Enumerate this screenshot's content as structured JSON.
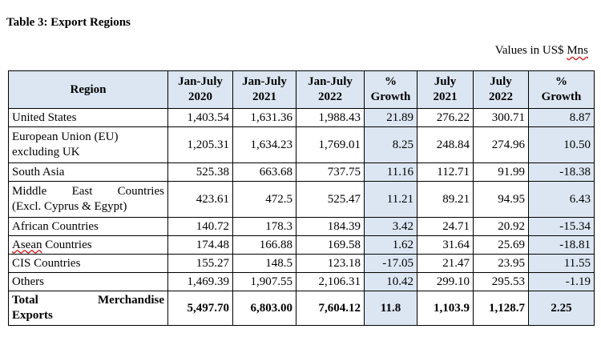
{
  "title": "Table 3: Export Regions",
  "units": {
    "prefix": "Values in US$ ",
    "suffix": "Mns"
  },
  "columns": [
    "Region",
    "Jan-July 2020",
    "Jan-July 2021",
    "Jan-July 2022",
    "% Growth",
    "July 2021",
    "July 2022",
    "% Growth"
  ],
  "header": {
    "region": "Region",
    "c1": [
      "Jan-July",
      "2020"
    ],
    "c2": [
      "Jan-July",
      "2021"
    ],
    "c3": [
      "Jan-July",
      "2022"
    ],
    "c4": [
      "%",
      "Growth"
    ],
    "c5": [
      "July",
      "2021"
    ],
    "c6": [
      "July",
      "2022"
    ],
    "c7": [
      "%",
      "Growth"
    ]
  },
  "rows": [
    {
      "region": "United States",
      "values": [
        "1,403.54",
        "1,631.36",
        "1,988.43",
        "21.89",
        "276.22",
        "300.71",
        "8.87"
      ]
    },
    {
      "region_line1": "European Union (EU)",
      "region_line2": "excluding UK",
      "values": [
        "1,205.31",
        "1,634.23",
        "1,769.01",
        "8.25",
        "248.84",
        "274.96",
        "10.50"
      ]
    },
    {
      "region": "South Asia",
      "values": [
        "525.38",
        "663.68",
        "737.75",
        "11.16",
        "112.71",
        "91.99",
        "-18.38"
      ]
    },
    {
      "region_line1_a": "Middle",
      "region_line1_b": "East",
      "region_line1_c": "Countries",
      "region_line2": "(Excl. Cyprus & Egypt)",
      "values": [
        "423.61",
        "472.5",
        "525.47",
        "11.21",
        "89.21",
        "94.95",
        "6.43"
      ]
    },
    {
      "region": "African Countries",
      "values": [
        "140.72",
        "178.3",
        "184.39",
        "3.42",
        "24.71",
        "20.92",
        "-15.34"
      ]
    },
    {
      "region_a": "Asean",
      "region_b": " Countries",
      "values": [
        "174.48",
        "166.88",
        "169.58",
        "1.62",
        "31.64",
        "25.69",
        "-18.81"
      ]
    },
    {
      "region": "CIS Countries",
      "values": [
        "155.27",
        "148.5",
        "123.18",
        "-17.05",
        "21.47",
        "23.95",
        "11.55"
      ]
    },
    {
      "region": "Others",
      "values": [
        "1,469.39",
        "1,907.55",
        "2,106.31",
        "10.42",
        "299.10",
        "295.53",
        "-1.19"
      ]
    }
  ],
  "total": {
    "label_a": "Total",
    "label_b": "Merchandise",
    "label_c": "Exports",
    "values": [
      "5,497.70",
      "6,803.00",
      "7,604.12",
      "11.8",
      "1,103.9",
      "1,128.7",
      "2.25"
    ]
  }
}
